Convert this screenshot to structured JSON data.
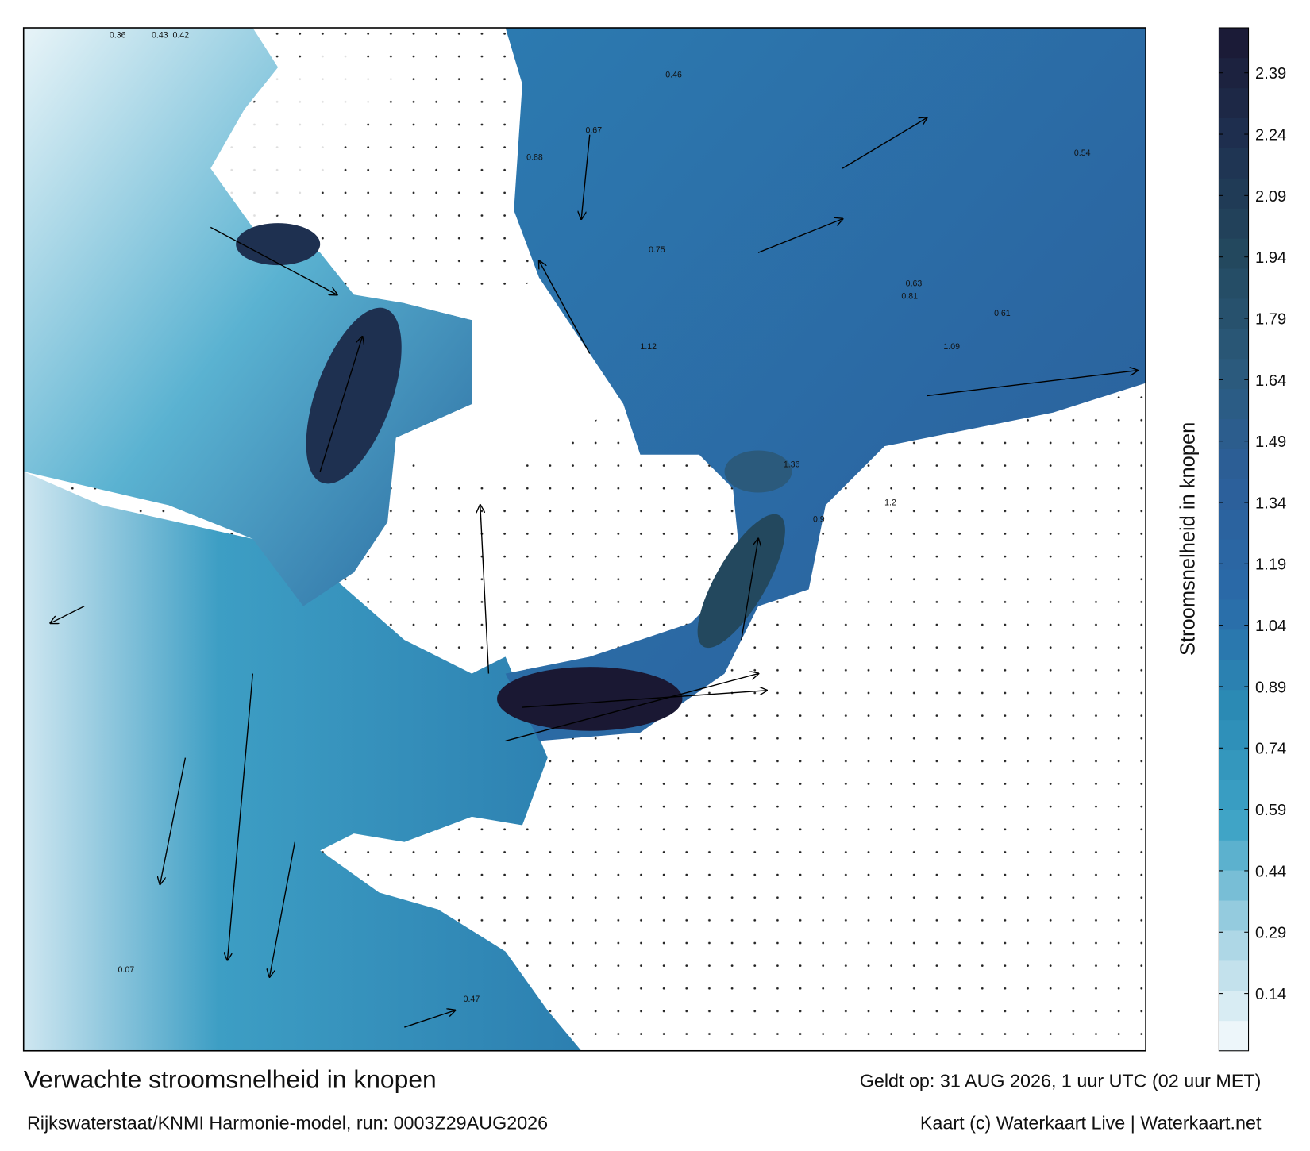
{
  "map": {
    "title": "Verwachte stroomsnelheid in knopen",
    "subtitle": "Rijkswaterstaat/KNMI Harmonie-model, run: 0003Z29AUG2026",
    "valid_time": "Geldt op: 31 AUG 2026, 1 uur UTC (02 uur MET)",
    "credit": "Kaart (c) Waterkaart Live | Waterkaart.net",
    "colorbar": {
      "label": "Stroomsnelheid in knopen",
      "clim": [
        0,
        2.5
      ],
      "ticks": [
        0.14,
        0.29,
        0.44,
        0.59,
        0.74,
        0.89,
        1.04,
        1.19,
        1.34,
        1.49,
        1.64,
        1.79,
        1.94,
        2.09,
        2.24,
        2.39
      ],
      "colormap": [
        "#f7fbfd",
        "#a8d4e4",
        "#3ea3c6",
        "#2b8bb5",
        "#2a6aa8",
        "#2c5f9a",
        "#2b5a7c",
        "#23485e",
        "#1e3050",
        "#1a1833"
      ]
    },
    "point_labels": [
      0.36,
      0.43,
      0.42,
      1.12,
      0.75,
      0.88,
      0.46,
      0.61,
      1.09,
      1.36,
      0.67,
      0.81,
      1.2,
      0.47,
      0.07,
      0.63,
      0.54,
      0.9
    ]
  }
}
